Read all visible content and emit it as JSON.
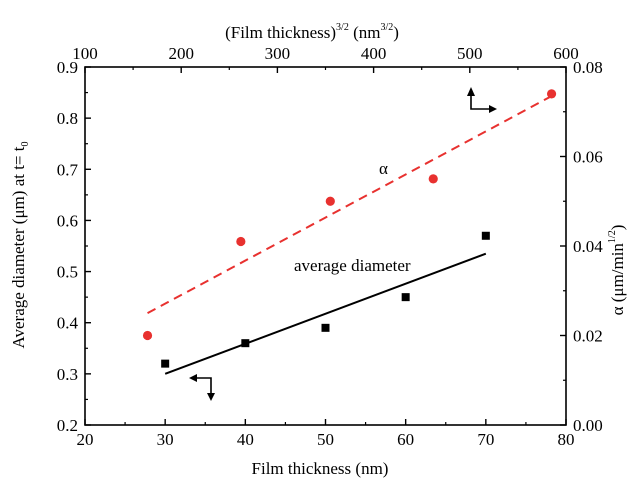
{
  "chart_data": {
    "type": "scatter",
    "bottom_axis": {
      "label": "Film thickness (nm)",
      "range": [
        20,
        80
      ],
      "ticks": [
        "20",
        "30",
        "40",
        "50",
        "60",
        "70",
        "80"
      ]
    },
    "top_axis": {
      "label_main": "(Film thickness)",
      "label_sup": "3/2",
      "unit_main": " (nm",
      "unit_sup": "3/2",
      "unit_close": ")",
      "range": [
        100,
        600
      ],
      "ticks": [
        "100",
        "200",
        "300",
        "400",
        "500",
        "600"
      ]
    },
    "left_axis": {
      "label": "Average diameter (μm) at t= t",
      "label_sub": "0",
      "range": [
        0.2,
        0.9
      ],
      "ticks": [
        "0.2",
        "0.3",
        "0.4",
        "0.5",
        "0.6",
        "0.7",
        "0.8",
        "0.9"
      ]
    },
    "right_axis": {
      "label": "α (μm/min",
      "label_sup": "1/2",
      "label_close": ")",
      "range": [
        0.0,
        0.08
      ],
      "ticks": [
        "0.00",
        "0.02",
        "0.04",
        "0.06",
        "0.08"
      ]
    },
    "series": [
      {
        "name": "average diameter",
        "axes": "bottom-left",
        "marker": "square",
        "color": "#000000",
        "x": [
          30,
          40,
          50,
          60,
          70
        ],
        "y": [
          0.32,
          0.36,
          0.39,
          0.45,
          0.57
        ],
        "fit": {
          "x": [
            30,
            70
          ],
          "y": [
            0.3,
            0.535
          ],
          "style": "solid"
        }
      },
      {
        "name": "α",
        "axes": "top-right",
        "marker": "circle",
        "color": "#e8312f",
        "x": [
          165,
          262,
          355,
          462,
          585
        ],
        "y": [
          0.02,
          0.041,
          0.05,
          0.055,
          0.074
        ],
        "fit": {
          "x": [
            165,
            585
          ],
          "y": [
            0.025,
            0.0735
          ],
          "style": "dashed"
        }
      }
    ],
    "grid": false
  }
}
